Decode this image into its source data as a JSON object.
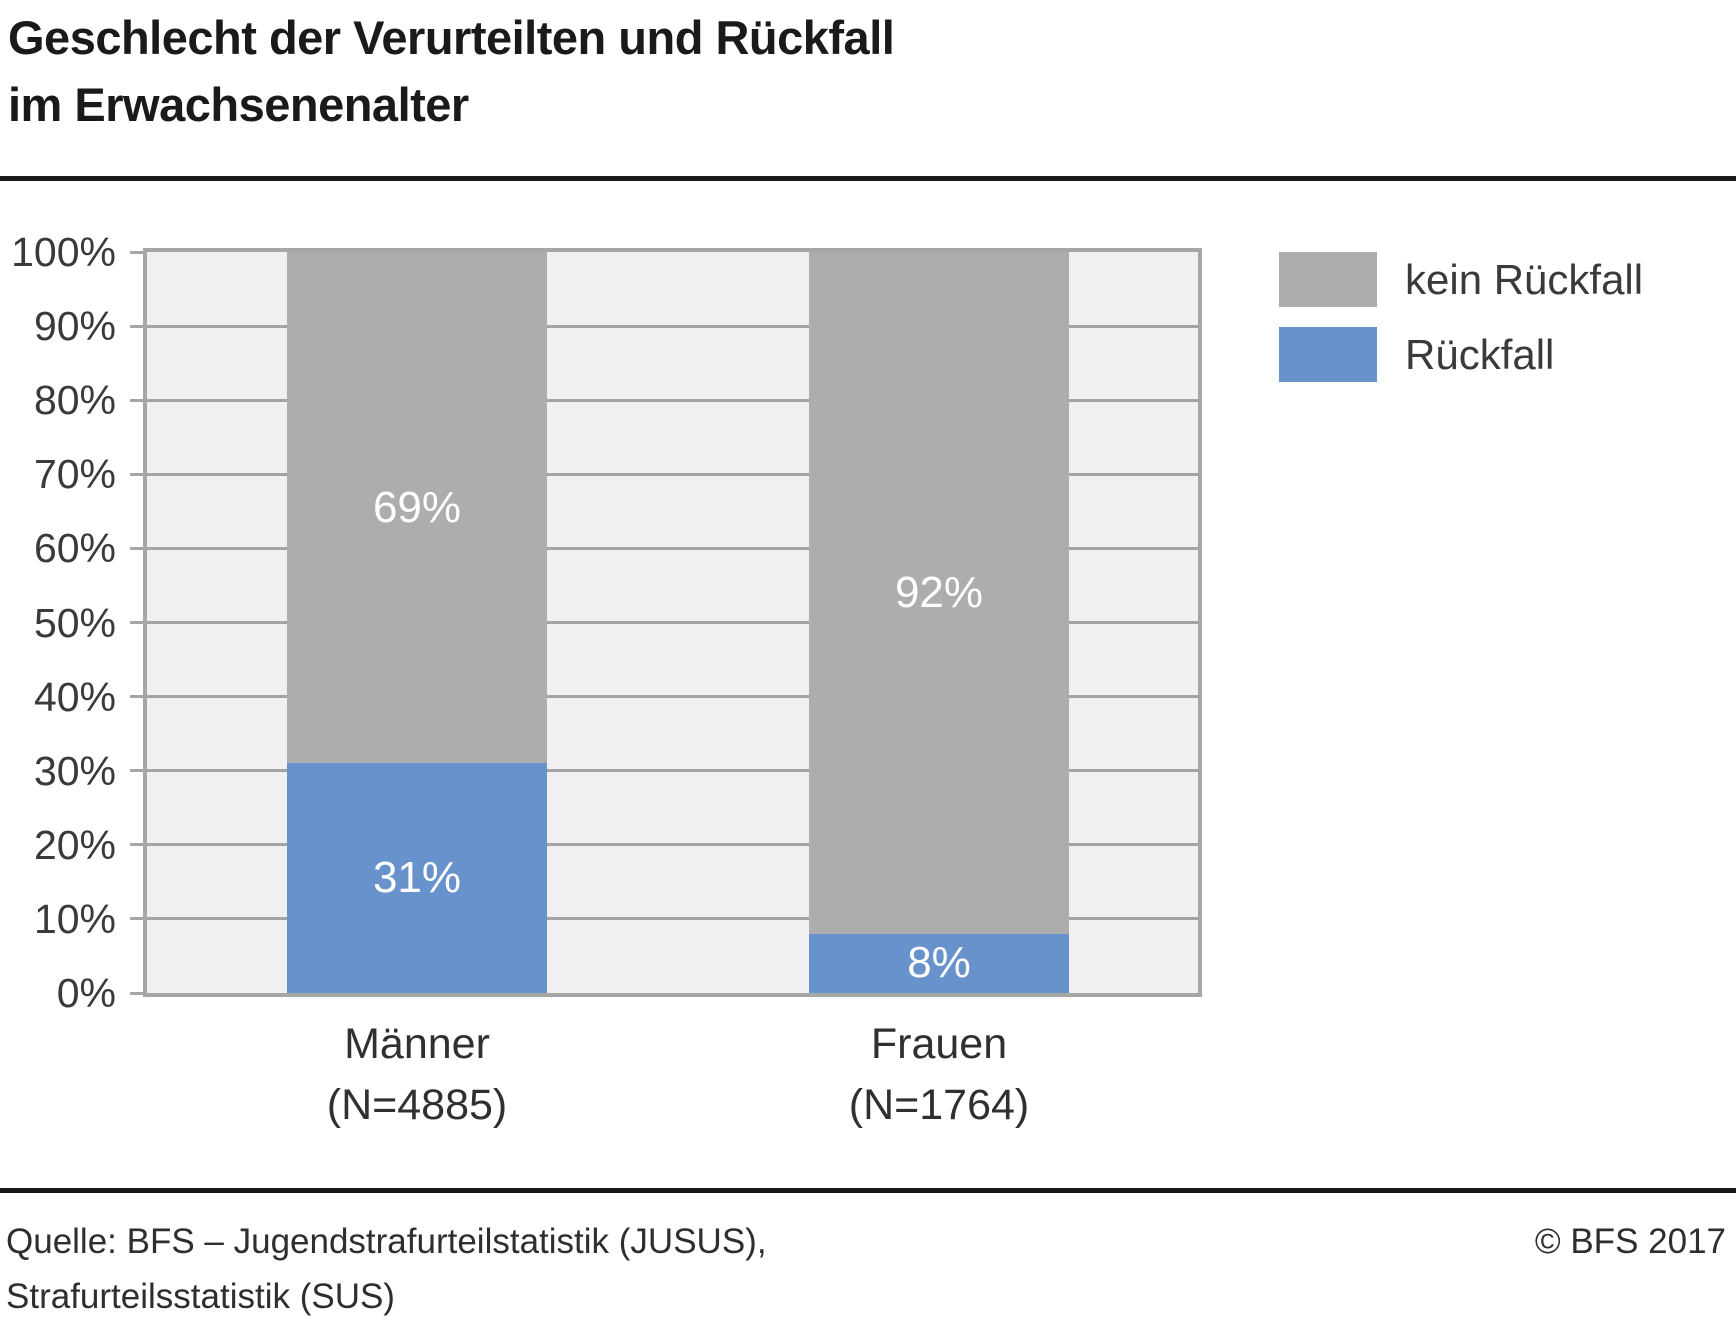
{
  "title_lines": [
    "Geschlecht der Verurteilten und Rückfall",
    "im Erwachsenenalter"
  ],
  "chart_data": {
    "type": "bar",
    "stacked": true,
    "orientation": "vertical",
    "title": "Geschlecht der Verurteilten und Rückfall im Erwachsenenalter",
    "categories": [
      {
        "label": "Männer",
        "sublabel": "(N=4885)"
      },
      {
        "label": "Frauen",
        "sublabel": "(N=1764)"
      }
    ],
    "series": [
      {
        "name": "kein Rückfall",
        "color": "#adadad",
        "values": [
          69,
          92
        ]
      },
      {
        "name": "Rückfall",
        "color": "#6892cb",
        "values": [
          31,
          8
        ]
      }
    ],
    "stack_order_bottom_to_top": [
      "Rückfall",
      "kein Rückfall"
    ],
    "value_suffix": "%",
    "ylim": [
      0,
      100
    ],
    "ytick_step": 10,
    "ytick_labels": [
      "0%",
      "10%",
      "20%",
      "30%",
      "40%",
      "50%",
      "60%",
      "70%",
      "80%",
      "90%",
      "100%"
    ],
    "grid": true,
    "legend_position": "top-right",
    "bar_label_color": "#ffffff"
  },
  "footer": {
    "source_line1": "Quelle: BFS – Jugendstrafurteilstatistik (JUSUS),",
    "source_line2": "Strafurteilsstatistik (SUS)",
    "copyright": "© BFS 2017"
  }
}
